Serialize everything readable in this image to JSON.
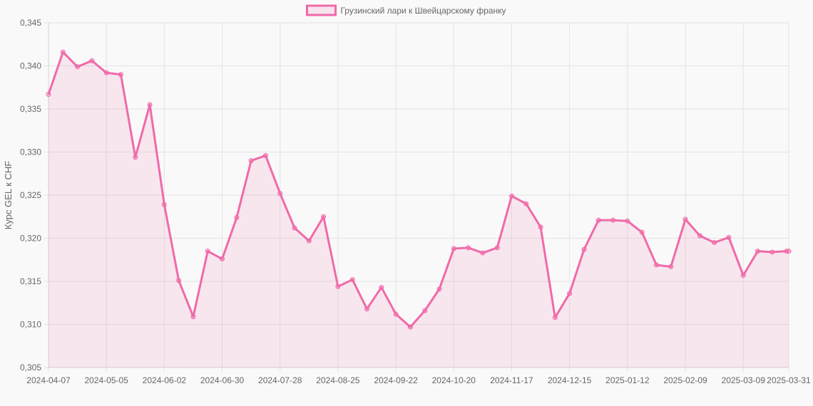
{
  "chart_data": {
    "type": "line",
    "ylabel": "Курс GEL к CHF",
    "xlabel": "",
    "ylim": [
      0.305,
      0.345
    ],
    "yticks": [
      "0,305",
      "0,310",
      "0,315",
      "0,320",
      "0,325",
      "0,330",
      "0,335",
      "0,340",
      "0,345"
    ],
    "x_tick_labels": [
      "2024-04-07",
      "2024-05-05",
      "2024-06-02",
      "2024-06-30",
      "2024-07-28",
      "2024-08-25",
      "2024-09-22",
      "2024-10-20",
      "2024-11-17",
      "2024-12-15",
      "2025-01-12",
      "2025-02-09",
      "2025-03-09",
      "2025-03-31"
    ],
    "legend_position": "top-center",
    "grid": true,
    "series": [
      {
        "name": "Грузинский лари к Швейцарскому франку",
        "color": "#f06aa9",
        "fill": "rgba(240,106,169,0.13)",
        "x": [
          "2024-04-07",
          "2024-04-14",
          "2024-04-21",
          "2024-04-28",
          "2024-05-05",
          "2024-05-12",
          "2024-05-19",
          "2024-05-26",
          "2024-06-02",
          "2024-06-09",
          "2024-06-16",
          "2024-06-23",
          "2024-06-30",
          "2024-07-07",
          "2024-07-14",
          "2024-07-21",
          "2024-07-28",
          "2024-08-04",
          "2024-08-11",
          "2024-08-18",
          "2024-08-25",
          "2024-09-01",
          "2024-09-08",
          "2024-09-15",
          "2024-09-22",
          "2024-09-29",
          "2024-10-06",
          "2024-10-13",
          "2024-10-20",
          "2024-10-27",
          "2024-11-03",
          "2024-11-10",
          "2024-11-17",
          "2024-11-24",
          "2024-12-01",
          "2024-12-08",
          "2024-12-15",
          "2024-12-22",
          "2024-12-29",
          "2025-01-05",
          "2025-01-12",
          "2025-01-19",
          "2025-01-26",
          "2025-02-02",
          "2025-02-09",
          "2025-02-16",
          "2025-02-23",
          "2025-03-02",
          "2025-03-09",
          "2025-03-16",
          "2025-03-23",
          "2025-03-30",
          "2025-03-31"
        ],
        "values": [
          0.3367,
          0.3416,
          0.3399,
          0.3406,
          0.3392,
          0.339,
          0.3294,
          0.3355,
          0.3239,
          0.3151,
          0.3109,
          0.3185,
          0.3176,
          0.3224,
          0.329,
          0.3296,
          0.3252,
          0.3212,
          0.3197,
          0.3225,
          0.3144,
          0.3152,
          0.3118,
          0.3143,
          0.3112,
          0.3097,
          0.3116,
          0.3141,
          0.3188,
          0.3189,
          0.3183,
          0.3189,
          0.3249,
          0.324,
          0.3213,
          0.3108,
          0.3136,
          0.3187,
          0.3221,
          0.3221,
          0.322,
          0.3207,
          0.3169,
          0.3167,
          0.3222,
          0.3203,
          0.3195,
          0.3201,
          0.3157,
          0.3185,
          0.3184,
          0.3185,
          0.3185
        ]
      }
    ]
  }
}
